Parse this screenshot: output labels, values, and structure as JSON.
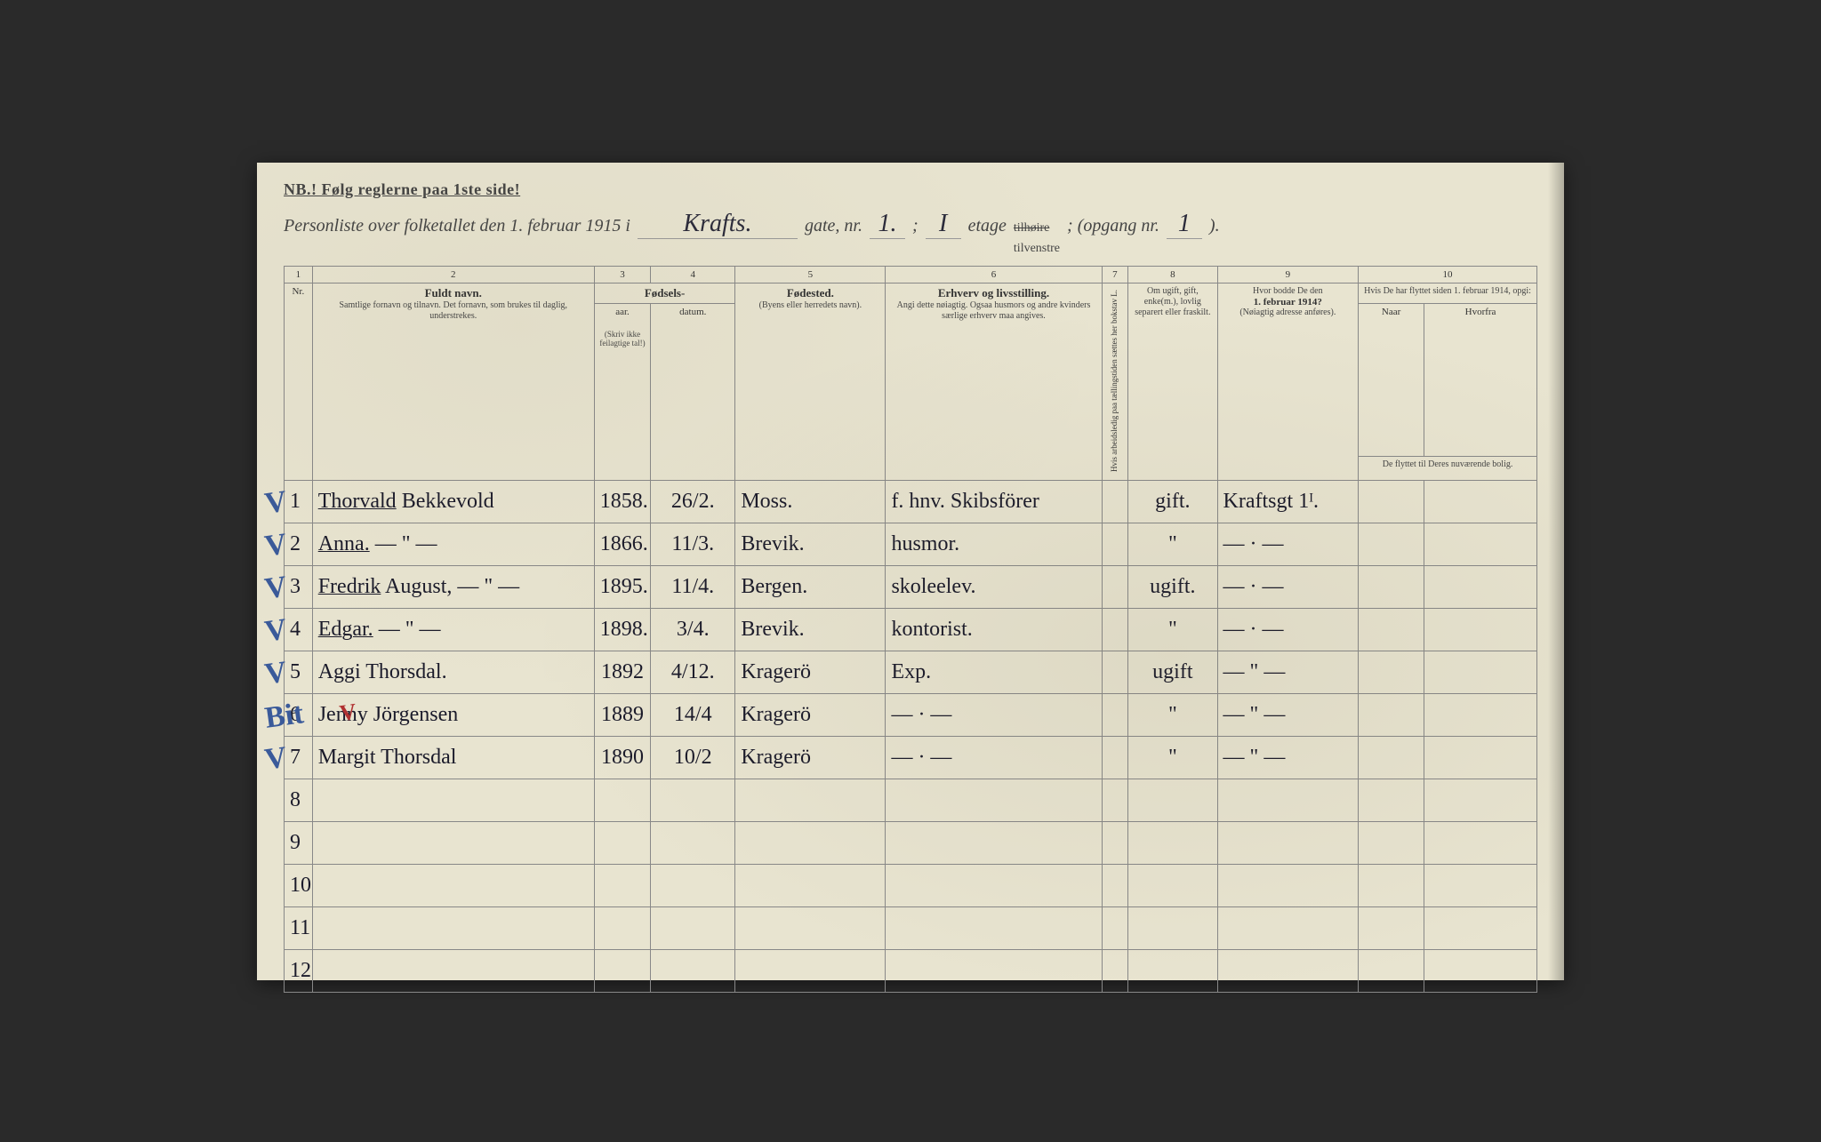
{
  "header": {
    "nb": "NB.!  Følg reglerne paa 1ste side!",
    "title_prefix": "Personliste over folketallet den 1. februar 1915 i",
    "street": "Krafts.",
    "gate_label": "gate, nr.",
    "gate_nr": "1.",
    "semicolon1": ";",
    "etage_nr": "I",
    "etage_label": "etage",
    "struck": "tilhøire",
    "tilvenstre": "tilvenstre",
    "opgang_label": "; (opgang nr.",
    "opgang_nr": "1",
    "close": ")."
  },
  "columns": {
    "nums": [
      "1",
      "2",
      "3",
      "4",
      "5",
      "6",
      "7",
      "8",
      "9",
      "10"
    ],
    "nr": "Nr.",
    "name_strong": "Fuldt navn.",
    "name_sub": "Samtlige fornavn og tilnavn.  Det fornavn, som brukes til daglig, understrekes.",
    "fodsels": "Fødsels-",
    "aar": "aar.",
    "datum": "datum.",
    "fodsels_note": "(Skriv ikke feilagtige tal!)",
    "fodested": "Fødested.",
    "fodested_sub": "(Byens eller herredets navn).",
    "erhverv": "Erhverv og livsstilling.",
    "erhverv_sub": "Angi dette nøiagtig. Ogsaa husmors og andre kvinders særlige erhverv maa angives.",
    "col7": "Hvis arbeidsledig paa tællingstiden sættes her bokstav L.",
    "marital": "Om ugift, gift, enke(m.), lovlig separert eller fraskilt.",
    "addr1914": "Hvor bodde De den",
    "addr1914b": "1. februar 1914?",
    "addr1914c": "(Nøiagtig adresse anføres).",
    "moved": "Hvis De har flyttet siden 1. februar 1914, opgi:",
    "naar": "Naar",
    "hvorfra": "Hvorfra",
    "moved_sub": "De flyttet til Deres nuværende bolig."
  },
  "rows": [
    {
      "n": "1",
      "check": "V",
      "name_u": "Thorvald",
      "name_rest": " Bekkevold",
      "yr": "1858.",
      "date": "26/2.",
      "place": "Moss.",
      "occ": "f. hnv. Skibsförer",
      "mar": "gift.",
      "addr": "Kraftsgt 1ᴵ.",
      "ink": "black"
    },
    {
      "n": "2",
      "check": "V",
      "name_u": "Anna.",
      "name_rest": "   — \" —",
      "yr": "1866.",
      "date": "11/3.",
      "place": "Brevik.",
      "occ": "husmor.",
      "mar": "\"",
      "addr": "— · —",
      "ink": "black"
    },
    {
      "n": "3",
      "check": "V",
      "name_u": "Fredrik",
      "name_rest": " August,  — \" —",
      "yr": "1895.",
      "date": "11/4.",
      "place": "Bergen.",
      "occ": "skoleelev.",
      "mar": "ugift.",
      "addr": "— · —",
      "ink": "black"
    },
    {
      "n": "4",
      "check": "V",
      "name_u": "Edgar.",
      "name_rest": "     — \" —",
      "yr": "1898.",
      "date": "3/4.",
      "place": "Brevik.",
      "occ": "kontorist.",
      "mar": "\"",
      "addr": "— · —",
      "ink": "black"
    },
    {
      "n": "5",
      "check": "V",
      "name_u": "",
      "name_rest": "Aggi Thorsdal.",
      "yr": "1892",
      "date": "4/12.",
      "place": "Kragerö",
      "occ": "Exp.",
      "mar": "ugift",
      "addr": "— \" —",
      "ink": "green"
    },
    {
      "n": "6",
      "check": "Bit",
      "check2": "V",
      "name_u": "",
      "name_rest": "Jenny Jörgensen",
      "yr": "1889",
      "date": "14/4",
      "place": "Kragerö",
      "occ": "— · —",
      "mar": "\"",
      "addr": "— \" —",
      "ink": "green"
    },
    {
      "n": "7",
      "check": "V",
      "name_u": "",
      "name_rest": "Margit Thorsdal",
      "yr": "1890",
      "date": "10/2",
      "place": "Kragerö",
      "occ": "— · —",
      "mar": "\"",
      "addr": "— \" —",
      "ink": "green"
    },
    {
      "n": "8"
    },
    {
      "n": "9"
    },
    {
      "n": "10"
    },
    {
      "n": "11"
    },
    {
      "n": "12"
    }
  ],
  "colors": {
    "paper": "#e8e4d0",
    "ink_black": "#1a1a2a",
    "ink_blue_check": "#3a5a9a",
    "ink_green": "#2a6a5a",
    "ink_red": "#b03030",
    "rule": "#888"
  }
}
